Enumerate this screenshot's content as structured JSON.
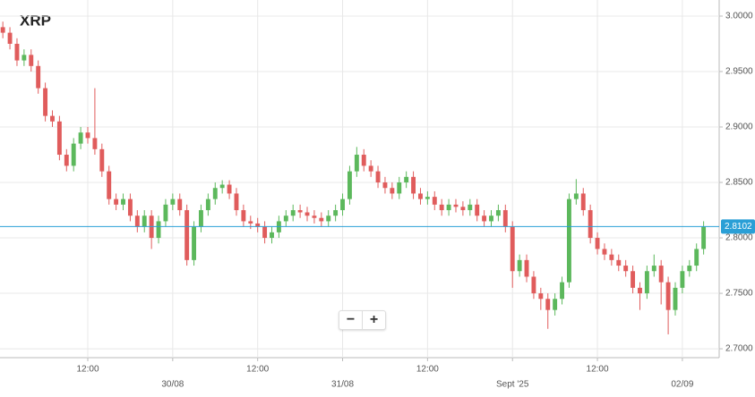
{
  "chart_data": {
    "type": "candlestick",
    "title": "XRP",
    "x": [
      0,
      1,
      2,
      3,
      4,
      5,
      6,
      7,
      8,
      9,
      10,
      11,
      12,
      13,
      14,
      15,
      16,
      17,
      18,
      19,
      20,
      21,
      22,
      23,
      24,
      25,
      26,
      27,
      28,
      29,
      30,
      31,
      32,
      33,
      34,
      35,
      36,
      37,
      38,
      39,
      40,
      41,
      42,
      43,
      44,
      45,
      46,
      47,
      48,
      49,
      50,
      51,
      52,
      53,
      54,
      55,
      56,
      57,
      58,
      59,
      60,
      61,
      62,
      63,
      64,
      65,
      66,
      67,
      68,
      69,
      70,
      71,
      72,
      73,
      74,
      75,
      76,
      77,
      78,
      79,
      80,
      81,
      82,
      83,
      84,
      85,
      86,
      87,
      88,
      89,
      90,
      91,
      92,
      93,
      94,
      95,
      96,
      97,
      98,
      99
    ],
    "open": [
      2.99,
      2.985,
      2.975,
      2.96,
      2.965,
      2.955,
      2.935,
      2.91,
      2.905,
      2.875,
      2.865,
      2.885,
      2.895,
      2.89,
      2.88,
      2.86,
      2.835,
      2.83,
      2.835,
      2.82,
      2.81,
      2.82,
      2.8,
      2.815,
      2.83,
      2.835,
      2.825,
      2.78,
      2.81,
      2.825,
      2.835,
      2.845,
      2.848,
      2.84,
      2.825,
      2.815,
      2.813,
      2.81,
      2.8,
      2.805,
      2.815,
      2.82,
      2.825,
      2.823,
      2.82,
      2.818,
      2.815,
      2.82,
      2.825,
      2.835,
      2.86,
      2.875,
      2.865,
      2.86,
      2.85,
      2.845,
      2.84,
      2.85,
      2.855,
      2.84,
      2.835,
      2.837,
      2.83,
      2.825,
      2.83,
      2.828,
      2.825,
      2.83,
      2.82,
      2.815,
      2.82,
      2.825,
      2.81,
      2.77,
      2.78,
      2.765,
      2.75,
      2.745,
      2.735,
      2.745,
      2.76,
      2.835,
      2.84,
      2.825,
      2.8,
      2.79,
      2.785,
      2.78,
      2.775,
      2.77,
      2.755,
      2.75,
      2.77,
      2.775,
      2.76,
      2.735,
      2.755,
      2.77,
      2.775,
      2.79
    ],
    "high": [
      2.995,
      2.99,
      2.98,
      2.97,
      2.97,
      2.96,
      2.94,
      2.915,
      2.91,
      2.88,
      2.89,
      2.9,
      2.9,
      2.935,
      2.885,
      2.865,
      2.84,
      2.84,
      2.84,
      2.825,
      2.825,
      2.825,
      2.82,
      2.835,
      2.84,
      2.84,
      2.83,
      2.815,
      2.83,
      2.84,
      2.85,
      2.852,
      2.852,
      2.845,
      2.83,
      2.82,
      2.818,
      2.815,
      2.81,
      2.82,
      2.825,
      2.83,
      2.83,
      2.828,
      2.825,
      2.823,
      2.825,
      2.83,
      2.84,
      2.865,
      2.882,
      2.88,
      2.87,
      2.865,
      2.855,
      2.85,
      2.855,
      2.86,
      2.86,
      2.845,
      2.842,
      2.842,
      2.835,
      2.835,
      2.835,
      2.833,
      2.835,
      2.835,
      2.825,
      2.825,
      2.83,
      2.83,
      2.815,
      2.785,
      2.785,
      2.77,
      2.755,
      2.75,
      2.75,
      2.765,
      2.84,
      2.853,
      2.845,
      2.83,
      2.805,
      2.795,
      2.79,
      2.785,
      2.78,
      2.775,
      2.76,
      2.775,
      2.785,
      2.78,
      2.765,
      2.76,
      2.775,
      2.78,
      2.795,
      2.815
    ],
    "low": [
      2.98,
      2.97,
      2.955,
      2.955,
      2.95,
      2.93,
      2.905,
      2.9,
      2.87,
      2.86,
      2.86,
      2.88,
      2.885,
      2.875,
      2.855,
      2.83,
      2.825,
      2.825,
      2.815,
      2.805,
      2.805,
      2.79,
      2.795,
      2.81,
      2.825,
      2.82,
      2.775,
      2.775,
      2.805,
      2.82,
      2.83,
      2.84,
      2.835,
      2.82,
      2.81,
      2.808,
      2.805,
      2.795,
      2.795,
      2.8,
      2.81,
      2.815,
      2.818,
      2.815,
      2.813,
      2.81,
      2.81,
      2.815,
      2.82,
      2.83,
      2.855,
      2.86,
      2.855,
      2.845,
      2.84,
      2.835,
      2.835,
      2.845,
      2.835,
      2.83,
      2.83,
      2.825,
      2.82,
      2.82,
      2.823,
      2.82,
      2.82,
      2.815,
      2.81,
      2.81,
      2.815,
      2.805,
      2.755,
      2.765,
      2.76,
      2.745,
      2.735,
      2.718,
      2.73,
      2.74,
      2.755,
      2.83,
      2.82,
      2.795,
      2.785,
      2.78,
      2.775,
      2.77,
      2.765,
      2.75,
      2.735,
      2.745,
      2.765,
      2.74,
      2.713,
      2.73,
      2.75,
      2.765,
      2.77,
      2.785
    ],
    "close": [
      2.985,
      2.975,
      2.96,
      2.965,
      2.955,
      2.935,
      2.91,
      2.905,
      2.875,
      2.865,
      2.885,
      2.895,
      2.89,
      2.88,
      2.86,
      2.835,
      2.83,
      2.835,
      2.82,
      2.81,
      2.82,
      2.8,
      2.815,
      2.83,
      2.835,
      2.825,
      2.78,
      2.81,
      2.825,
      2.835,
      2.845,
      2.848,
      2.84,
      2.825,
      2.815,
      2.813,
      2.81,
      2.8,
      2.805,
      2.815,
      2.82,
      2.825,
      2.823,
      2.82,
      2.818,
      2.815,
      2.82,
      2.825,
      2.835,
      2.86,
      2.875,
      2.865,
      2.86,
      2.85,
      2.845,
      2.84,
      2.85,
      2.855,
      2.84,
      2.835,
      2.837,
      2.83,
      2.825,
      2.83,
      2.828,
      2.825,
      2.83,
      2.82,
      2.815,
      2.82,
      2.825,
      2.81,
      2.77,
      2.78,
      2.765,
      2.75,
      2.745,
      2.735,
      2.745,
      2.76,
      2.835,
      2.84,
      2.825,
      2.8,
      2.79,
      2.785,
      2.78,
      2.775,
      2.77,
      2.755,
      2.75,
      2.77,
      2.775,
      2.76,
      2.735,
      2.755,
      2.77,
      2.775,
      2.79,
      2.81
    ],
    "up_color": "#5cb85c",
    "down_color": "#e05c5c",
    "xlim": [
      -0.4,
      101.2
    ],
    "xticks": [
      {
        "value": 12,
        "label": "12:00"
      },
      {
        "value": 24,
        "label": "30/08"
      },
      {
        "value": 36,
        "label": "12:00"
      },
      {
        "value": 48,
        "label": "31/08"
      },
      {
        "value": 60,
        "label": "12:00"
      },
      {
        "value": 72,
        "label": "Sept '25"
      },
      {
        "value": 84,
        "label": "12:00"
      },
      {
        "value": 96,
        "label": "02/09"
      }
    ],
    "ylim": [
      2.692,
      3.0145
    ],
    "yticks": [
      {
        "value": 2.7,
        "label": "2.7000"
      },
      {
        "value": 2.75,
        "label": "2.7500"
      },
      {
        "value": 2.8,
        "label": "2.8000"
      },
      {
        "value": 2.85,
        "label": "2.8500"
      },
      {
        "value": 2.9,
        "label": "2.9000"
      },
      {
        "value": 2.95,
        "label": "2.9500"
      },
      {
        "value": 3,
        "label": "3.0000"
      }
    ],
    "last_price": {
      "value": 2.8102,
      "label": "2.8102"
    },
    "grid": true
  },
  "zoom_controls": [
    "−",
    "+"
  ]
}
